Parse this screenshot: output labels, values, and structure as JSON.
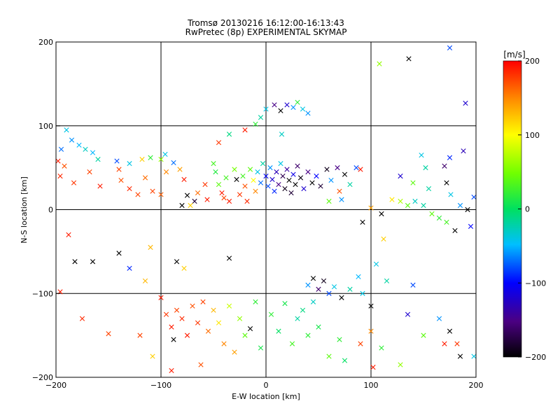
{
  "chart_data": {
    "type": "scatter",
    "title": "Tromsø 20130216 16:12:00-16:13:43",
    "subtitle": "RwPretec (8p) EXPERIMENTAL SKYMAP",
    "xlabel": "E-W location [km]",
    "ylabel": "N-S location [km]",
    "xlim": [
      -200,
      200
    ],
    "ylim": [
      -200,
      200
    ],
    "xticks": [
      -200,
      -100,
      0,
      100,
      200
    ],
    "yticks": [
      -200,
      -100,
      0,
      100,
      200
    ],
    "grid": true,
    "colorbar": {
      "label": "[m/s]",
      "range": [
        -200,
        200
      ],
      "ticks": [
        200,
        100,
        0,
        -100,
        -200
      ],
      "colormap": "rainbow-black-to-red"
    },
    "marker_legend": "none",
    "points": [
      {
        "x": -190,
        "y": 95,
        "v": -40,
        "m": "x"
      },
      {
        "x": -185,
        "y": 83,
        "v": -60,
        "m": "x"
      },
      {
        "x": -178,
        "y": 77,
        "v": -50,
        "m": "x"
      },
      {
        "x": -172,
        "y": 72,
        "v": -30,
        "m": "x"
      },
      {
        "x": -165,
        "y": 68,
        "v": -50,
        "m": "x"
      },
      {
        "x": -160,
        "y": 60,
        "v": -20,
        "m": "x"
      },
      {
        "x": -195,
        "y": 72,
        "v": -70,
        "m": "x"
      },
      {
        "x": -198,
        "y": 58,
        "v": 190,
        "m": "x"
      },
      {
        "x": -196,
        "y": 40,
        "v": 185,
        "m": "x"
      },
      {
        "x": -192,
        "y": 52,
        "v": 170,
        "m": "x"
      },
      {
        "x": -183,
        "y": 32,
        "v": 180,
        "m": "x"
      },
      {
        "x": -168,
        "y": 45,
        "v": 175,
        "m": "x"
      },
      {
        "x": -158,
        "y": 28,
        "v": 190,
        "m": "x"
      },
      {
        "x": -140,
        "y": 48,
        "v": 175,
        "m": "x"
      },
      {
        "x": -138,
        "y": 35,
        "v": 170,
        "m": "x"
      },
      {
        "x": -130,
        "y": 25,
        "v": 185,
        "m": "x"
      },
      {
        "x": -122,
        "y": 18,
        "v": 175,
        "m": "x"
      },
      {
        "x": -115,
        "y": 38,
        "v": 160,
        "m": "x"
      },
      {
        "x": -108,
        "y": 22,
        "v": 175,
        "m": "x"
      },
      {
        "x": -100,
        "y": 18,
        "v": 165,
        "m": "x"
      },
      {
        "x": -95,
        "y": 45,
        "v": 150,
        "m": "x"
      },
      {
        "x": -142,
        "y": 58,
        "v": -80,
        "m": "x"
      },
      {
        "x": -130,
        "y": 55,
        "v": -40,
        "m": "x"
      },
      {
        "x": -118,
        "y": 60,
        "v": 120,
        "m": "x"
      },
      {
        "x": -110,
        "y": 62,
        "v": 20,
        "m": "x"
      },
      {
        "x": -100,
        "y": 60,
        "v": 60,
        "m": "x"
      },
      {
        "x": -96,
        "y": 66,
        "v": -40,
        "m": "x"
      },
      {
        "x": -88,
        "y": 56,
        "v": -70,
        "m": "x"
      },
      {
        "x": -82,
        "y": 48,
        "v": 140,
        "m": "x"
      },
      {
        "x": -78,
        "y": 36,
        "v": 190,
        "m": "x"
      },
      {
        "x": -75,
        "y": 17,
        "v": -200,
        "m": "x"
      },
      {
        "x": -68,
        "y": 10,
        "v": -180,
        "m": "x"
      },
      {
        "x": -80,
        "y": 5,
        "v": -200,
        "m": "x"
      },
      {
        "x": -72,
        "y": 5,
        "v": 120,
        "m": "x"
      },
      {
        "x": -65,
        "y": 20,
        "v": 160,
        "m": "x"
      },
      {
        "x": -58,
        "y": 30,
        "v": 180,
        "m": "x"
      },
      {
        "x": -56,
        "y": 12,
        "v": 190,
        "m": "x"
      },
      {
        "x": -50,
        "y": 55,
        "v": 30,
        "m": "x"
      },
      {
        "x": -48,
        "y": 45,
        "v": 15,
        "m": "x"
      },
      {
        "x": -45,
        "y": 30,
        "v": 40,
        "m": "x"
      },
      {
        "x": -42,
        "y": 20,
        "v": 190,
        "m": "x"
      },
      {
        "x": -40,
        "y": 14,
        "v": 175,
        "m": "x"
      },
      {
        "x": -38,
        "y": 38,
        "v": 30,
        "m": "x"
      },
      {
        "x": -35,
        "y": 10,
        "v": 190,
        "m": "x"
      },
      {
        "x": -30,
        "y": 48,
        "v": 50,
        "m": "x"
      },
      {
        "x": -28,
        "y": 36,
        "v": -200,
        "m": "x"
      },
      {
        "x": -25,
        "y": 18,
        "v": 180,
        "m": "x"
      },
      {
        "x": -22,
        "y": 40,
        "v": 30,
        "m": "x"
      },
      {
        "x": -20,
        "y": 28,
        "v": 170,
        "m": "x"
      },
      {
        "x": -18,
        "y": 10,
        "v": 185,
        "m": "x"
      },
      {
        "x": -15,
        "y": 48,
        "v": 40,
        "m": "x"
      },
      {
        "x": -12,
        "y": 35,
        "v": 100,
        "m": "x"
      },
      {
        "x": -10,
        "y": 22,
        "v": 150,
        "m": "x"
      },
      {
        "x": -8,
        "y": 45,
        "v": -40,
        "m": "x"
      },
      {
        "x": -5,
        "y": 32,
        "v": -70,
        "m": "x"
      },
      {
        "x": -3,
        "y": 55,
        "v": -20,
        "m": "x"
      },
      {
        "x": 0,
        "y": 40,
        "v": -100,
        "m": "x"
      },
      {
        "x": 2,
        "y": 28,
        "v": -80,
        "m": "x"
      },
      {
        "x": 4,
        "y": 50,
        "v": -60,
        "m": "x"
      },
      {
        "x": 6,
        "y": 36,
        "v": -120,
        "m": "x"
      },
      {
        "x": 8,
        "y": 22,
        "v": -90,
        "m": "x"
      },
      {
        "x": 10,
        "y": 45,
        "v": -130,
        "m": "x"
      },
      {
        "x": 12,
        "y": 30,
        "v": -150,
        "m": "x"
      },
      {
        "x": 14,
        "y": 55,
        "v": -40,
        "m": "x"
      },
      {
        "x": 16,
        "y": 40,
        "v": -170,
        "m": "x"
      },
      {
        "x": 18,
        "y": 25,
        "v": -190,
        "m": "x"
      },
      {
        "x": 20,
        "y": 48,
        "v": -140,
        "m": "x"
      },
      {
        "x": 22,
        "y": 35,
        "v": -200,
        "m": "x"
      },
      {
        "x": 24,
        "y": 20,
        "v": -180,
        "m": "x"
      },
      {
        "x": 26,
        "y": 42,
        "v": -110,
        "m": "x"
      },
      {
        "x": 28,
        "y": 30,
        "v": -200,
        "m": "x"
      },
      {
        "x": 30,
        "y": 52,
        "v": -160,
        "m": "x"
      },
      {
        "x": 33,
        "y": 38,
        "v": -195,
        "m": "x"
      },
      {
        "x": 36,
        "y": 25,
        "v": -120,
        "m": "x"
      },
      {
        "x": 40,
        "y": 45,
        "v": -150,
        "m": "x"
      },
      {
        "x": 44,
        "y": 32,
        "v": -200,
        "m": "x"
      },
      {
        "x": 48,
        "y": 40,
        "v": -100,
        "m": "x"
      },
      {
        "x": 52,
        "y": 28,
        "v": -180,
        "m": "x"
      },
      {
        "x": 58,
        "y": 48,
        "v": -190,
        "m": "x"
      },
      {
        "x": 62,
        "y": 35,
        "v": -60,
        "m": "x"
      },
      {
        "x": 68,
        "y": 50,
        "v": -150,
        "m": "x"
      },
      {
        "x": 75,
        "y": 42,
        "v": -200,
        "m": "x"
      },
      {
        "x": 80,
        "y": 30,
        "v": -20,
        "m": "x"
      },
      {
        "x": 86,
        "y": 50,
        "v": -80,
        "m": "x"
      },
      {
        "x": 90,
        "y": 48,
        "v": 190,
        "m": "x"
      },
      {
        "x": 70,
        "y": 22,
        "v": 170,
        "m": "x"
      },
      {
        "x": 72,
        "y": 12,
        "v": -60,
        "m": "x"
      },
      {
        "x": 60,
        "y": 10,
        "v": 40,
        "m": "x"
      },
      {
        "x": -5,
        "y": 110,
        "v": -20,
        "m": "x"
      },
      {
        "x": 0,
        "y": 120,
        "v": -40,
        "m": "x"
      },
      {
        "x": 8,
        "y": 125,
        "v": -150,
        "m": "x"
      },
      {
        "x": 14,
        "y": 118,
        "v": -200,
        "m": "x"
      },
      {
        "x": 20,
        "y": 125,
        "v": -120,
        "m": "x"
      },
      {
        "x": 26,
        "y": 122,
        "v": -60,
        "m": "x"
      },
      {
        "x": 30,
        "y": 128,
        "v": 20,
        "m": "x"
      },
      {
        "x": 35,
        "y": 120,
        "v": -40,
        "m": "x"
      },
      {
        "x": -10,
        "y": 102,
        "v": 20,
        "m": "x"
      },
      {
        "x": -20,
        "y": 95,
        "v": 190,
        "m": "x"
      },
      {
        "x": -35,
        "y": 90,
        "v": -10,
        "m": "x"
      },
      {
        "x": -45,
        "y": 80,
        "v": 180,
        "m": "x"
      },
      {
        "x": 15,
        "y": 90,
        "v": -30,
        "m": "x"
      },
      {
        "x": 40,
        "y": 115,
        "v": -60,
        "m": "x"
      },
      {
        "x": 108,
        "y": 174,
        "v": 60,
        "m": "x"
      },
      {
        "x": 136,
        "y": 180,
        "v": -200,
        "m": "x"
      },
      {
        "x": 175,
        "y": 193,
        "v": -80,
        "m": "x"
      },
      {
        "x": 190,
        "y": 127,
        "v": -120,
        "m": "x"
      },
      {
        "x": 148,
        "y": 65,
        "v": -40,
        "m": "x"
      },
      {
        "x": 175,
        "y": 62,
        "v": -90,
        "m": "x"
      },
      {
        "x": 188,
        "y": 70,
        "v": -130,
        "m": "x"
      },
      {
        "x": 152,
        "y": 50,
        "v": -20,
        "m": "x"
      },
      {
        "x": 170,
        "y": 52,
        "v": -160,
        "m": "x"
      },
      {
        "x": 128,
        "y": 40,
        "v": -120,
        "m": "x"
      },
      {
        "x": 140,
        "y": 32,
        "v": 40,
        "m": "x"
      },
      {
        "x": 155,
        "y": 25,
        "v": -20,
        "m": "x"
      },
      {
        "x": 172,
        "y": 32,
        "v": -200,
        "m": "x"
      },
      {
        "x": 176,
        "y": 18,
        "v": -40,
        "m": "x"
      },
      {
        "x": 198,
        "y": 15,
        "v": -80,
        "m": "x"
      },
      {
        "x": 128,
        "y": 10,
        "v": 70,
        "m": "x"
      },
      {
        "x": 135,
        "y": 5,
        "v": 40,
        "m": "x"
      },
      {
        "x": 142,
        "y": 10,
        "v": -30,
        "m": "x"
      },
      {
        "x": 150,
        "y": 5,
        "v": -20,
        "m": "x"
      },
      {
        "x": 158,
        "y": -5,
        "v": 40,
        "m": "x"
      },
      {
        "x": 165,
        "y": -10,
        "v": 20,
        "m": "x"
      },
      {
        "x": 172,
        "y": -15,
        "v": 30,
        "m": "x"
      },
      {
        "x": 180,
        "y": -25,
        "v": -200,
        "m": "x"
      },
      {
        "x": 192,
        "y": 0,
        "v": -200,
        "m": "x"
      },
      {
        "x": 195,
        "y": -20,
        "v": -100,
        "m": "x"
      },
      {
        "x": 185,
        "y": 5,
        "v": -60,
        "m": "x"
      },
      {
        "x": 110,
        "y": -5,
        "v": -200,
        "m": "x"
      },
      {
        "x": 120,
        "y": 12,
        "v": 110,
        "m": "x"
      },
      {
        "x": 100,
        "y": 2,
        "v": 140,
        "m": "x"
      },
      {
        "x": 92,
        "y": -15,
        "v": -200,
        "m": "x"
      },
      {
        "x": 112,
        "y": -35,
        "v": 120,
        "m": "x"
      },
      {
        "x": -182,
        "y": -62,
        "v": -200,
        "m": "x"
      },
      {
        "x": -165,
        "y": -62,
        "v": -200,
        "m": "x"
      },
      {
        "x": -140,
        "y": -52,
        "v": -200,
        "m": "x"
      },
      {
        "x": -130,
        "y": -70,
        "v": -90,
        "m": "x"
      },
      {
        "x": -115,
        "y": -85,
        "v": 130,
        "m": "x"
      },
      {
        "x": -110,
        "y": -45,
        "v": 130,
        "m": "x"
      },
      {
        "x": -85,
        "y": -62,
        "v": -200,
        "m": "x"
      },
      {
        "x": -78,
        "y": -70,
        "v": 120,
        "m": "x"
      },
      {
        "x": -35,
        "y": -58,
        "v": -200,
        "m": "x"
      },
      {
        "x": -100,
        "y": -105,
        "v": 190,
        "m": "x"
      },
      {
        "x": -95,
        "y": -125,
        "v": 180,
        "m": "x"
      },
      {
        "x": -90,
        "y": -140,
        "v": 190,
        "m": "x"
      },
      {
        "x": -85,
        "y": -120,
        "v": 175,
        "m": "x"
      },
      {
        "x": -80,
        "y": -130,
        "v": 185,
        "m": "x"
      },
      {
        "x": -75,
        "y": -150,
        "v": 190,
        "m": "x"
      },
      {
        "x": -70,
        "y": -115,
        "v": 170,
        "m": "x"
      },
      {
        "x": -65,
        "y": -135,
        "v": 180,
        "m": "x"
      },
      {
        "x": -60,
        "y": -110,
        "v": 175,
        "m": "x"
      },
      {
        "x": -55,
        "y": -145,
        "v": 160,
        "m": "x"
      },
      {
        "x": -50,
        "y": -120,
        "v": 130,
        "m": "x"
      },
      {
        "x": -45,
        "y": -135,
        "v": 110,
        "m": "x"
      },
      {
        "x": -40,
        "y": -160,
        "v": 150,
        "m": "x"
      },
      {
        "x": -35,
        "y": -115,
        "v": 80,
        "m": "x"
      },
      {
        "x": -30,
        "y": -170,
        "v": 140,
        "m": "x"
      },
      {
        "x": -25,
        "y": -130,
        "v": 60,
        "m": "x"
      },
      {
        "x": -20,
        "y": -150,
        "v": 40,
        "m": "x"
      },
      {
        "x": -15,
        "y": -142,
        "v": -200,
        "m": "x"
      },
      {
        "x": -10,
        "y": -110,
        "v": 20,
        "m": "x"
      },
      {
        "x": -5,
        "y": -165,
        "v": 10,
        "m": "x"
      },
      {
        "x": -88,
        "y": -155,
        "v": -200,
        "m": "x"
      },
      {
        "x": -90,
        "y": -192,
        "v": 190,
        "m": "x"
      },
      {
        "x": -108,
        "y": -175,
        "v": 120,
        "m": "x"
      },
      {
        "x": -62,
        "y": -185,
        "v": 170,
        "m": "x"
      },
      {
        "x": 5,
        "y": -125,
        "v": 20,
        "m": "x"
      },
      {
        "x": 12,
        "y": -145,
        "v": 0,
        "m": "x"
      },
      {
        "x": 18,
        "y": -112,
        "v": 10,
        "m": "x"
      },
      {
        "x": 25,
        "y": -160,
        "v": 30,
        "m": "x"
      },
      {
        "x": 30,
        "y": -130,
        "v": -20,
        "m": "x"
      },
      {
        "x": 35,
        "y": -120,
        "v": -10,
        "m": "x"
      },
      {
        "x": 40,
        "y": -150,
        "v": 20,
        "m": "x"
      },
      {
        "x": 45,
        "y": -110,
        "v": -30,
        "m": "x"
      },
      {
        "x": 50,
        "y": -140,
        "v": 10,
        "m": "x"
      },
      {
        "x": 40,
        "y": -90,
        "v": -60,
        "m": "x"
      },
      {
        "x": 45,
        "y": -82,
        "v": -200,
        "m": "x"
      },
      {
        "x": 50,
        "y": -95,
        "v": -160,
        "m": "x"
      },
      {
        "x": 55,
        "y": -85,
        "v": -190,
        "m": "x"
      },
      {
        "x": 60,
        "y": -100,
        "v": -80,
        "m": "x"
      },
      {
        "x": 65,
        "y": -92,
        "v": -40,
        "m": "x"
      },
      {
        "x": 72,
        "y": -105,
        "v": -200,
        "m": "x"
      },
      {
        "x": 80,
        "y": -95,
        "v": -20,
        "m": "x"
      },
      {
        "x": 88,
        "y": -80,
        "v": -50,
        "m": "x"
      },
      {
        "x": 92,
        "y": -100,
        "v": -40,
        "m": "x"
      },
      {
        "x": 100,
        "y": -115,
        "v": -200,
        "m": "x"
      },
      {
        "x": 105,
        "y": -65,
        "v": -40,
        "m": "x"
      },
      {
        "x": 115,
        "y": -85,
        "v": -20,
        "m": "x"
      },
      {
        "x": 135,
        "y": -125,
        "v": -120,
        "m": "x"
      },
      {
        "x": 140,
        "y": -90,
        "v": -80,
        "m": "x"
      },
      {
        "x": 150,
        "y": -150,
        "v": 40,
        "m": "x"
      },
      {
        "x": 165,
        "y": -130,
        "v": -60,
        "m": "x"
      },
      {
        "x": 170,
        "y": -160,
        "v": 190,
        "m": "x"
      },
      {
        "x": 182,
        "y": -160,
        "v": 180,
        "m": "x"
      },
      {
        "x": 185,
        "y": -175,
        "v": -200,
        "m": "x"
      },
      {
        "x": 175,
        "y": -145,
        "v": -200,
        "m": "x"
      },
      {
        "x": 198,
        "y": -175,
        "v": -40,
        "m": "x"
      },
      {
        "x": 100,
        "y": -145,
        "v": 150,
        "m": "x"
      },
      {
        "x": 90,
        "y": -160,
        "v": 175,
        "m": "x"
      },
      {
        "x": 102,
        "y": -188,
        "v": 190,
        "m": "x"
      },
      {
        "x": 110,
        "y": -165,
        "v": 20,
        "m": "x"
      },
      {
        "x": 128,
        "y": -185,
        "v": 60,
        "m": "x"
      },
      {
        "x": 60,
        "y": -175,
        "v": 40,
        "m": "x"
      },
      {
        "x": 70,
        "y": -155,
        "v": 20,
        "m": "x"
      },
      {
        "x": 75,
        "y": -180,
        "v": 0,
        "m": "x"
      },
      {
        "x": -188,
        "y": -30,
        "v": 190,
        "m": "x"
      },
      {
        "x": -196,
        "y": -98,
        "v": 190,
        "m": "x"
      },
      {
        "x": -175,
        "y": -130,
        "v": 185,
        "m": "x"
      },
      {
        "x": -150,
        "y": -148,
        "v": 175,
        "m": "x"
      },
      {
        "x": -120,
        "y": -150,
        "v": 175,
        "m": "x"
      }
    ]
  }
}
